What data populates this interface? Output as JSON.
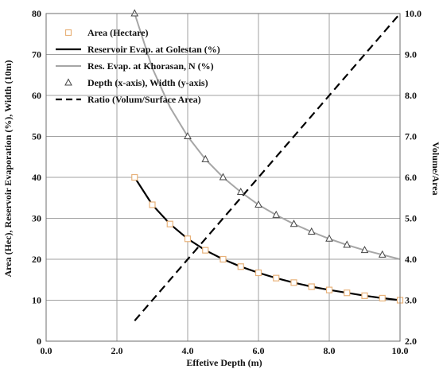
{
  "chart_data": {
    "type": "line",
    "x_axis": {
      "label": "Effetive Depth (m)",
      "min": 0,
      "max": 10,
      "step": 2,
      "ticks": [
        "0.0",
        "2.0",
        "4.0",
        "6.0",
        "8.0",
        "10.0"
      ]
    },
    "y_left": {
      "label": "Area (Hec), Reservoir Evaporation (%), Width (10m)",
      "min": 0,
      "max": 80,
      "step": 10,
      "ticks": [
        "0",
        "10",
        "20",
        "30",
        "40",
        "50",
        "60",
        "70",
        "80"
      ]
    },
    "y_right": {
      "label": "Volume/Area",
      "min": 2,
      "max": 10,
      "step": 1,
      "ticks": [
        "2.0",
        "3.0",
        "4.0",
        "5.0",
        "6.0",
        "7.0",
        "8.0",
        "9.0",
        "10.0"
      ]
    },
    "grid": true,
    "legend_position": "top-left",
    "series": [
      {
        "name": "Area (Hectare)",
        "kind": "markers",
        "marker": "square",
        "color": "#e8b27a",
        "axis": "left",
        "x": [
          2.5,
          3.0,
          3.5,
          4.0,
          4.5,
          5.0,
          5.5,
          6.0,
          6.5,
          7.0,
          7.5,
          8.0,
          8.5,
          9.0,
          9.5,
          10.0
        ],
        "y": [
          40.0,
          33.3,
          28.6,
          25.0,
          22.2,
          20.0,
          18.2,
          16.7,
          15.4,
          14.3,
          13.3,
          12.5,
          11.8,
          11.1,
          10.5,
          10.0
        ]
      },
      {
        "name": "Reservoir Evap. at Golestan (%)",
        "kind": "line",
        "color": "#000000",
        "dash": "",
        "width": 2.2,
        "axis": "left",
        "x": [
          2.5,
          3.0,
          3.5,
          4.0,
          4.5,
          5.0,
          5.5,
          6.0,
          6.5,
          7.0,
          7.5,
          8.0,
          8.5,
          9.0,
          9.5,
          10.0
        ],
        "y": [
          40.0,
          33.3,
          28.6,
          25.0,
          22.2,
          20.0,
          18.2,
          16.7,
          15.4,
          14.3,
          13.3,
          12.5,
          11.8,
          11.1,
          10.5,
          10.0
        ]
      },
      {
        "name": "Res. Evap. at Khorasan, N (%)",
        "kind": "line",
        "color": "#a6a6a6",
        "dash": "",
        "width": 2,
        "axis": "left",
        "x": [
          2.5,
          3.0,
          3.5,
          4.0,
          4.5,
          5.0,
          5.5,
          6.0,
          6.5,
          7.0,
          7.5,
          8.0,
          8.5,
          9.0,
          9.5,
          10.0
        ],
        "y": [
          80.0,
          66.7,
          57.1,
          50.0,
          44.4,
          40.0,
          36.4,
          33.3,
          30.8,
          28.6,
          26.7,
          25.0,
          23.5,
          22.2,
          21.1,
          20.0
        ]
      },
      {
        "name": "Depth (x-axis), Width (y-axis)",
        "kind": "markers",
        "marker": "triangle",
        "color": "#444444",
        "axis": "left",
        "x": [
          2.5,
          4.0,
          4.5,
          5.0,
          5.5,
          6.0,
          6.5,
          7.0,
          7.5,
          8.0,
          8.5,
          9.0,
          9.5
        ],
        "y": [
          80.0,
          50.0,
          44.4,
          40.0,
          36.4,
          33.3,
          30.8,
          28.6,
          26.7,
          25.0,
          23.5,
          22.2,
          21.1
        ]
      },
      {
        "name": "Ratio (Volum/Surface Area)",
        "kind": "line",
        "color": "#000000",
        "dash": "10,6",
        "width": 2.2,
        "axis": "right",
        "x": [
          2.5,
          10.0
        ],
        "y": [
          2.5,
          10.0
        ]
      }
    ]
  }
}
